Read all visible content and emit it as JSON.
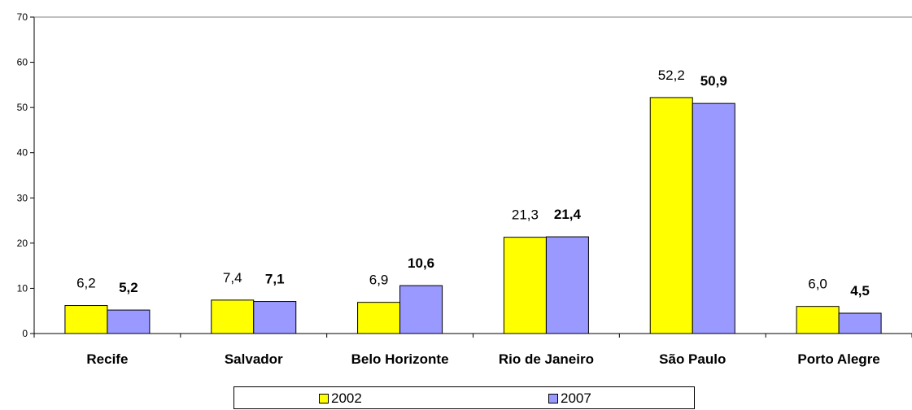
{
  "chart_data": {
    "type": "bar",
    "categories": [
      "Recife",
      "Salvador",
      "Belo Horizonte",
      "Rio de Janeiro",
      "São Paulo",
      "Porto Alegre"
    ],
    "series": [
      {
        "name": "2002",
        "values": [
          6.2,
          7.4,
          6.9,
          21.3,
          52.2,
          6.0
        ],
        "labels": [
          "6,2",
          "7,4",
          "6,9",
          "21,3",
          "52,2",
          "6,0"
        ],
        "color": "#ffff00",
        "label_bold": false
      },
      {
        "name": "2007",
        "values": [
          5.2,
          7.1,
          10.6,
          21.4,
          50.9,
          4.5
        ],
        "labels": [
          "5,2",
          "7,1",
          "10,6",
          "21,4",
          "50,9",
          "4,5"
        ],
        "color": "#9999ff",
        "label_bold": true
      }
    ],
    "ylim": [
      0,
      70
    ],
    "yticks": [
      0,
      10,
      20,
      30,
      40,
      50,
      60,
      70
    ],
    "xlabel": "",
    "ylabel": "",
    "grid": false,
    "legend_position": "bottom"
  }
}
